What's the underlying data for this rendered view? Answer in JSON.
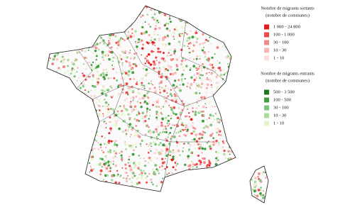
{
  "legend_out": {
    "title": "Nombre de migrants sortants",
    "subtitle": "(nombre de communes)",
    "items": [
      {
        "label": "1 000 - 24 800",
        "color": "#e31a1c"
      },
      {
        "label": "100 - 1 000",
        "color": "#ec4b4b"
      },
      {
        "label": "30 - 100",
        "color": "#f28a8a"
      },
      {
        "label": "10 - 30",
        "color": "#f7b5b5"
      },
      {
        "label": "1 - 10",
        "color": "#fbdcdc"
      }
    ]
  },
  "legend_in": {
    "title": "Nombre de migrants entrants",
    "subtitle": "(nombre de communes)",
    "items": [
      {
        "label": "500 - 3 500",
        "color": "#1b7a1b"
      },
      {
        "label": "100 - 500",
        "color": "#3f9f3f"
      },
      {
        "label": "30 - 100",
        "color": "#7cc47c"
      },
      {
        "label": "10 - 30",
        "color": "#acdc9c"
      },
      {
        "label": "1 - 10",
        "color": "#e6f5c9"
      }
    ]
  }
}
